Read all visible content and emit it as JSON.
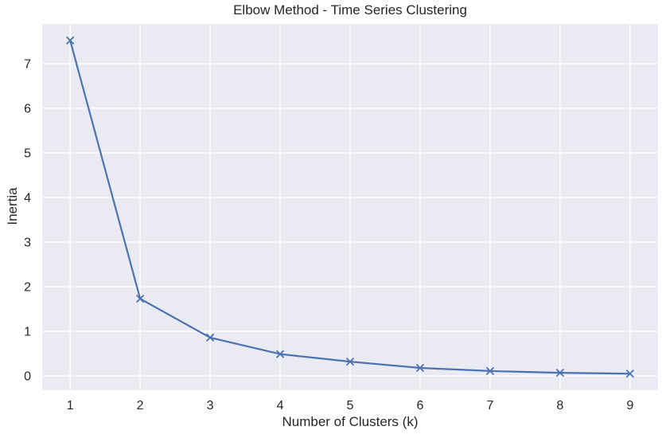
{
  "chart_data": {
    "type": "line",
    "title": "Elbow Method - Time Series Clustering",
    "xlabel": "Number of Clusters (k)",
    "ylabel": "Inertia",
    "x": [
      1,
      2,
      3,
      4,
      5,
      6,
      7,
      8,
      9
    ],
    "series": [
      {
        "name": "Inertia",
        "values": [
          7.52,
          1.73,
          0.86,
          0.49,
          0.32,
          0.18,
          0.11,
          0.07,
          0.05
        ]
      }
    ],
    "marker": "x",
    "xticks": [
      1,
      2,
      3,
      4,
      5,
      6,
      7,
      8,
      9
    ],
    "xtick_labels": [
      "1",
      "2",
      "3",
      "4",
      "5",
      "6",
      "7",
      "8",
      "9"
    ],
    "yticks": [
      0,
      1,
      2,
      3,
      4,
      5,
      6,
      7
    ],
    "ytick_labels": [
      "0",
      "1",
      "2",
      "3",
      "4",
      "5",
      "6",
      "7"
    ],
    "xlim": [
      0.6,
      9.4
    ],
    "ylim": [
      -0.32,
      7.89
    ],
    "grid": true,
    "legend_position": "none",
    "colors": {
      "line": "#4c72b0",
      "marker": "#4c72b0",
      "plot_background": "#eaeaf2",
      "gridline": "#ffffff",
      "text": "#262626",
      "figure_background": "#ffffff"
    }
  }
}
